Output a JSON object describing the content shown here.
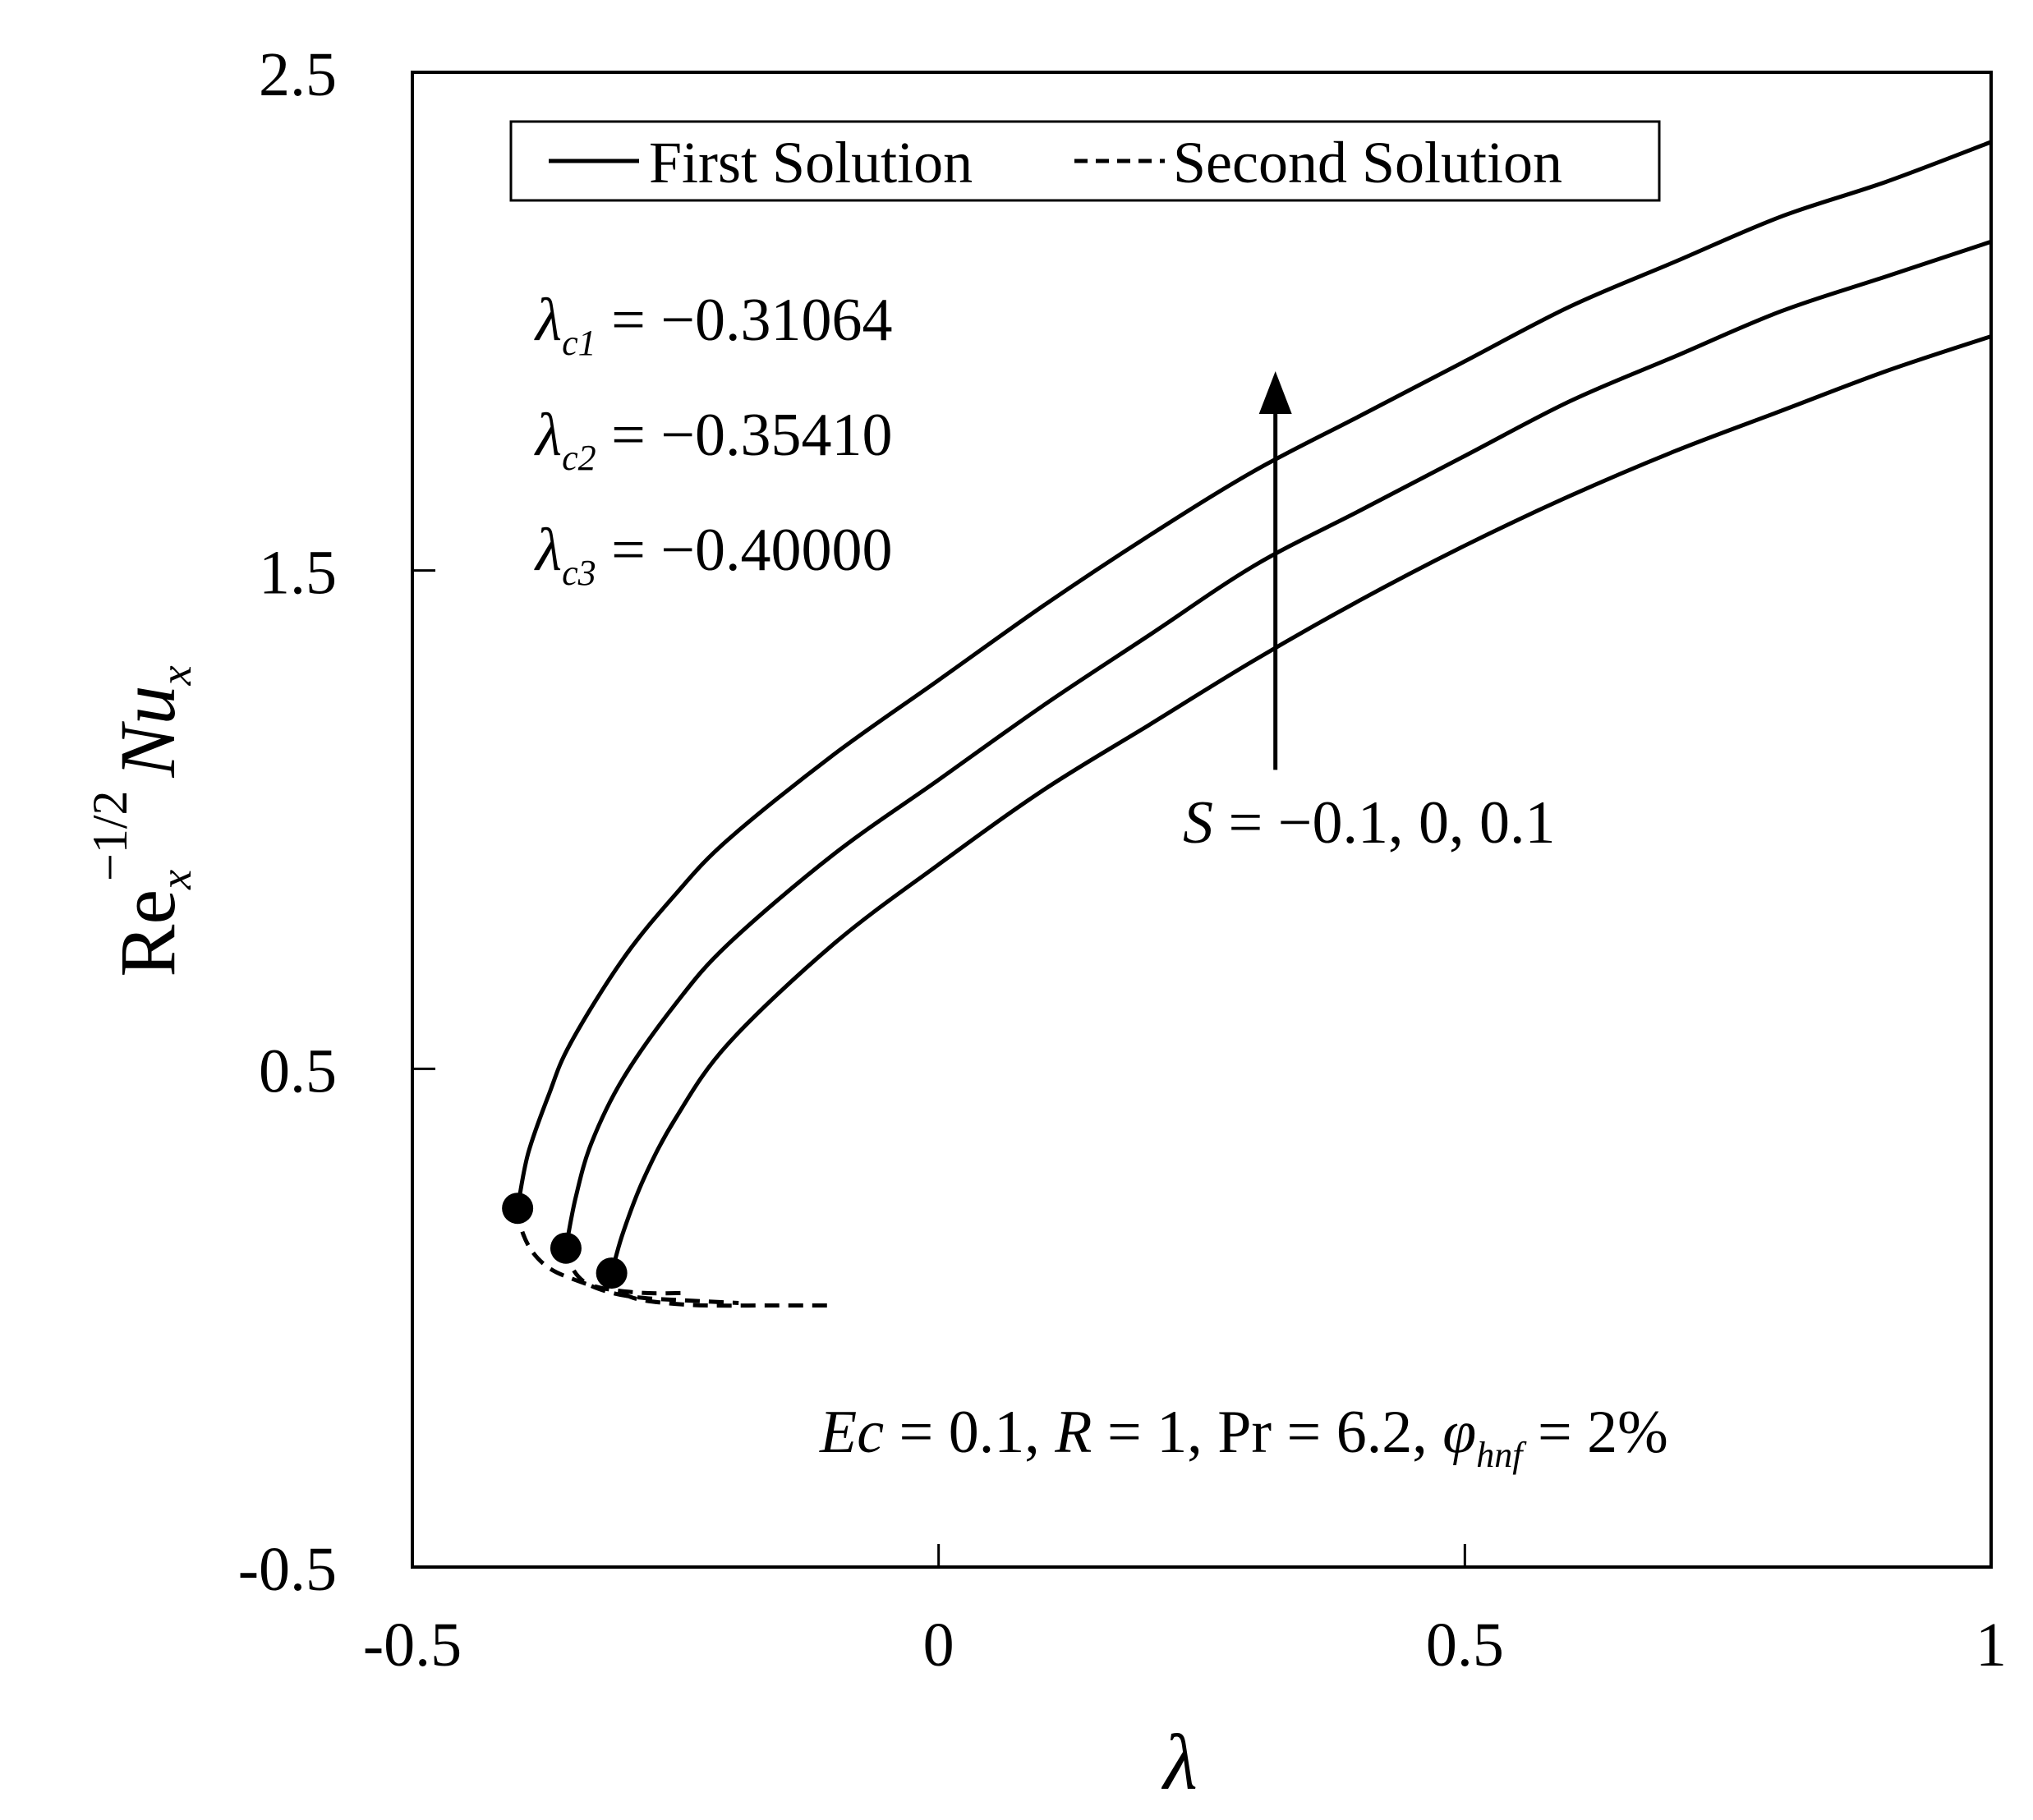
{
  "chart_data": {
    "type": "line",
    "xlabel": "λ",
    "ylabel": {
      "base": "Re",
      "sub": "x",
      "sup": "−1/2",
      "base2": "Nu",
      "sub2": "x"
    },
    "xlim": [
      -0.5,
      1
    ],
    "ylim": [
      -0.5,
      2.5
    ],
    "x_ticks": [
      {
        "value": -0.5,
        "label": "-0.5"
      },
      {
        "value": 0,
        "label": "0"
      },
      {
        "value": 0.5,
        "label": "0.5"
      },
      {
        "value": 1,
        "label": "1"
      }
    ],
    "y_ticks": [
      {
        "value": -0.5,
        "label": "-0.5"
      },
      {
        "value": 0.5,
        "label": "0.5"
      },
      {
        "value": 1.5,
        "label": "1.5"
      },
      {
        "value": 2.5,
        "label": "2.5"
      }
    ],
    "grid": false,
    "legend": {
      "position": "top-left",
      "entries": [
        {
          "label": "First Solution",
          "style": "solid"
        },
        {
          "label": "Second Solution",
          "style": "dashed"
        }
      ]
    },
    "critical_values": [
      {
        "symbol": "λ",
        "sub": "c1",
        "text": " = −0.31064"
      },
      {
        "symbol": "λ",
        "sub": "c2",
        "text": " = −0.35410"
      },
      {
        "symbol": "λ",
        "sub": "c3",
        "text": " = −0.40000"
      }
    ],
    "arrow_annotation": {
      "x": 0.32,
      "y_from": 1.1,
      "y_to": 1.9,
      "label_var": "S",
      "label_text": " = −0.1, 0, 0.1"
    },
    "parameters": {
      "parts": [
        {
          "text": "Ec",
          "style": "italic"
        },
        {
          "text": " = 0.1, ",
          "style": "normal"
        },
        {
          "text": "R",
          "style": "italic"
        },
        {
          "text": " = 1, Pr = 6.2, ",
          "style": "normal"
        },
        {
          "text": "φ",
          "style": "italic"
        },
        {
          "text": "hnf",
          "style": "sub"
        },
        {
          "text": " = 2%",
          "style": "normal"
        }
      ]
    },
    "series": [
      {
        "kind": "first",
        "critical_point": [
          -0.4,
          0.22
        ],
        "first_solution": [
          [
            -0.4,
            0.22
          ],
          [
            -0.39,
            0.33
          ],
          [
            -0.37,
            0.45
          ],
          [
            -0.35,
            0.55
          ],
          [
            -0.3,
            0.72
          ],
          [
            -0.25,
            0.85
          ],
          [
            -0.2,
            0.96
          ],
          [
            -0.1,
            1.13
          ],
          [
            0.0,
            1.28
          ],
          [
            0.1,
            1.43
          ],
          [
            0.2,
            1.57
          ],
          [
            0.3,
            1.7
          ],
          [
            0.4,
            1.81
          ],
          [
            0.5,
            1.92
          ],
          [
            0.6,
            2.03
          ],
          [
            0.7,
            2.12
          ],
          [
            0.8,
            2.21
          ],
          [
            0.9,
            2.28
          ],
          [
            1.0,
            2.36
          ]
        ],
        "second_solution": [
          [
            -0.4,
            0.22
          ],
          [
            -0.395,
            0.17
          ],
          [
            -0.385,
            0.13
          ],
          [
            -0.37,
            0.1
          ],
          [
            -0.35,
            0.08
          ],
          [
            -0.32,
            0.06
          ],
          [
            -0.28,
            0.05
          ],
          [
            -0.24,
            0.05
          ]
        ]
      },
      {
        "kind": "first",
        "critical_point": [
          -0.3541,
          0.14
        ],
        "first_solution": [
          [
            -0.3541,
            0.14
          ],
          [
            -0.345,
            0.24
          ],
          [
            -0.33,
            0.35
          ],
          [
            -0.3,
            0.48
          ],
          [
            -0.25,
            0.63
          ],
          [
            -0.2,
            0.75
          ],
          [
            -0.1,
            0.93
          ],
          [
            0.0,
            1.08
          ],
          [
            0.1,
            1.23
          ],
          [
            0.2,
            1.37
          ],
          [
            0.3,
            1.51
          ],
          [
            0.4,
            1.62
          ],
          [
            0.5,
            1.73
          ],
          [
            0.6,
            1.84
          ],
          [
            0.7,
            1.93
          ],
          [
            0.8,
            2.02
          ],
          [
            0.9,
            2.09
          ],
          [
            1.0,
            2.16
          ]
        ],
        "second_solution": [
          [
            -0.3541,
            0.14
          ],
          [
            -0.348,
            0.1
          ],
          [
            -0.335,
            0.07
          ],
          [
            -0.31,
            0.05
          ],
          [
            -0.28,
            0.04
          ],
          [
            -0.24,
            0.035
          ],
          [
            -0.19,
            0.03
          ]
        ]
      },
      {
        "kind": "first",
        "critical_point": [
          -0.31064,
          0.09
        ],
        "first_solution": [
          [
            -0.31064,
            0.09
          ],
          [
            -0.3,
            0.17
          ],
          [
            -0.28,
            0.28
          ],
          [
            -0.25,
            0.4
          ],
          [
            -0.2,
            0.55
          ],
          [
            -0.1,
            0.75
          ],
          [
            0.0,
            0.91
          ],
          [
            0.1,
            1.06
          ],
          [
            0.2,
            1.19
          ],
          [
            0.3,
            1.32
          ],
          [
            0.4,
            1.44
          ],
          [
            0.5,
            1.55
          ],
          [
            0.6,
            1.65
          ],
          [
            0.7,
            1.74
          ],
          [
            0.8,
            1.82
          ],
          [
            0.9,
            1.9
          ],
          [
            1.0,
            1.97
          ]
        ],
        "second_solution": [
          [
            -0.31064,
            0.09
          ],
          [
            -0.305,
            0.06
          ],
          [
            -0.29,
            0.04
          ],
          [
            -0.26,
            0.03
          ],
          [
            -0.22,
            0.025
          ],
          [
            -0.16,
            0.025
          ],
          [
            -0.1,
            0.025
          ]
        ]
      }
    ]
  }
}
